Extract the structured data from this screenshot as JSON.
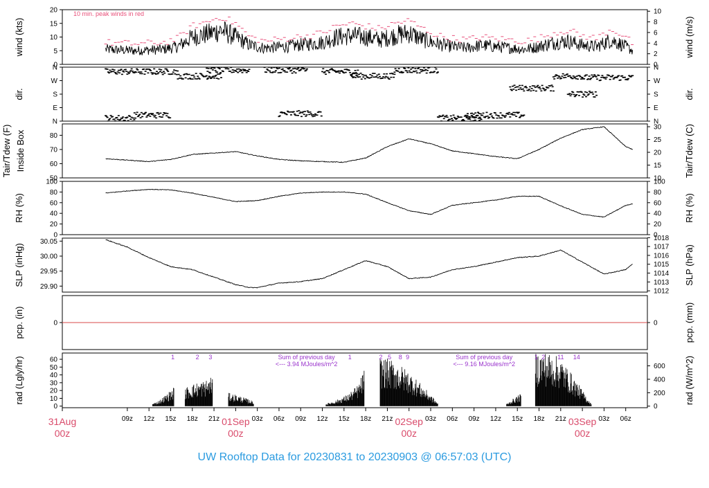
{
  "figure": {
    "footer_title": "UW Rooftop Data for 20230831  to  20230903 @ 06:57:03  (UTC)",
    "colors": {
      "title": "#2b9be0",
      "day_label": "#d94a6a",
      "wind_peak": "#e8507a",
      "pcp_line": "#d94a4a",
      "annotation": "#9932cc",
      "trace": "#000000"
    }
  },
  "time_axis": {
    "hours_span": 81,
    "ticks": [
      {
        "h": 3,
        "label": "09z"
      },
      {
        "h": 6,
        "label": "12z"
      },
      {
        "h": 9,
        "label": "15z"
      },
      {
        "h": 12,
        "label": "18z"
      },
      {
        "h": 15,
        "label": "21z"
      },
      {
        "h": 21,
        "label": "03z"
      },
      {
        "h": 24,
        "label": "06z"
      },
      {
        "h": 27,
        "label": "09z"
      },
      {
        "h": 30,
        "label": "12z"
      },
      {
        "h": 33,
        "label": "15z"
      },
      {
        "h": 36,
        "label": "18z"
      },
      {
        "h": 39,
        "label": "21z"
      },
      {
        "h": 45,
        "label": "03z"
      },
      {
        "h": 48,
        "label": "06z"
      },
      {
        "h": 51,
        "label": "09z"
      },
      {
        "h": 54,
        "label": "12z"
      },
      {
        "h": 57,
        "label": "15z"
      },
      {
        "h": 60,
        "label": "18z"
      },
      {
        "h": 63,
        "label": "21z"
      },
      {
        "h": 69,
        "label": "03z"
      },
      {
        "h": 72,
        "label": "06z"
      }
    ],
    "day_labels": [
      {
        "h": -6,
        "date": "31Aug",
        "zulu": "00z"
      },
      {
        "h": 18,
        "date": "01Sep",
        "zulu": "00z"
      },
      {
        "h": 42,
        "date": "02Sep",
        "zulu": "00z"
      },
      {
        "h": 66,
        "date": "03Sep",
        "zulu": "00z"
      }
    ]
  },
  "chart_data": [
    {
      "type": "line",
      "id": "wind",
      "ylabel": "wind (kts)",
      "ylabel_right": "wind (m/s)",
      "ylim": [
        0,
        20
      ],
      "yticks": [
        0,
        5,
        10,
        15,
        20
      ],
      "right_ylim": [
        0,
        10.29
      ],
      "right_yticks": [
        0,
        2,
        4,
        6,
        8,
        10
      ],
      "annotation": "10 min. peak winds in red",
      "series": [
        {
          "hours": [
            0,
            4,
            8,
            10,
            12,
            14,
            16,
            18,
            20,
            22,
            25,
            28,
            30,
            32,
            34,
            36,
            38,
            40,
            42,
            44,
            46,
            48,
            50,
            52,
            54,
            56,
            58,
            60,
            62,
            64,
            66,
            68,
            70,
            72,
            73
          ],
          "values": [
            5.5,
            5.0,
            5.5,
            6.5,
            10.0,
            11.0,
            12.5,
            10.0,
            7.0,
            6.0,
            6.5,
            7.5,
            8.0,
            10.0,
            10.5,
            10.0,
            9.0,
            10.5,
            11.5,
            9.0,
            7.5,
            6.5,
            6.0,
            7.0,
            6.5,
            6.0,
            5.5,
            6.5,
            8.0,
            8.5,
            7.0,
            6.5,
            9.0,
            6.5,
            5.0
          ]
        },
        {
          "hours": [
            0,
            4,
            8,
            10,
            12,
            14,
            16,
            18,
            20,
            22,
            25,
            28,
            30,
            32,
            34,
            36,
            38,
            40,
            42,
            44,
            46,
            48,
            50,
            52,
            54,
            56,
            58,
            60,
            62,
            64,
            66,
            68,
            70,
            72,
            73
          ],
          "values": [
            8.0,
            7.5,
            8.0,
            9.5,
            14.0,
            15.5,
            17.5,
            15.0,
            10.0,
            8.5,
            9.5,
            10.5,
            11.5,
            14.0,
            15.0,
            14.0,
            13.0,
            15.0,
            16.0,
            13.0,
            10.5,
            9.5,
            9.0,
            10.0,
            9.5,
            9.0,
            8.5,
            9.5,
            11.5,
            12.5,
            10.5,
            9.5,
            13.0,
            10.0,
            7.5
          ]
        }
      ]
    },
    {
      "type": "scatter",
      "id": "dir",
      "ylabel": "dir.",
      "ylabel_right": "dir.",
      "ylim": [
        0,
        360
      ],
      "ytick_values": [
        0,
        90,
        180,
        270,
        360
      ],
      "ytick_labels": [
        "N",
        "E",
        "S",
        "W",
        "N"
      ],
      "clusters": [
        {
          "h0": 0,
          "h1": 10,
          "dir": 330
        },
        {
          "h0": 0,
          "h1": 4,
          "dir": 20
        },
        {
          "h0": 4,
          "h1": 9,
          "dir": 40
        },
        {
          "h0": 10,
          "h1": 16,
          "dir": 300
        },
        {
          "h0": 14,
          "h1": 20,
          "dir": 340
        },
        {
          "h0": 22,
          "h1": 28,
          "dir": 340
        },
        {
          "h0": 24,
          "h1": 30,
          "dir": 50
        },
        {
          "h0": 30,
          "h1": 35,
          "dir": 330
        },
        {
          "h0": 34,
          "h1": 40,
          "dir": 300
        },
        {
          "h0": 40,
          "h1": 46,
          "dir": 340
        },
        {
          "h0": 46,
          "h1": 52,
          "dir": 20
        },
        {
          "h0": 50,
          "h1": 58,
          "dir": 40
        },
        {
          "h0": 56,
          "h1": 62,
          "dir": 220
        },
        {
          "h0": 62,
          "h1": 66,
          "dir": 300
        },
        {
          "h0": 66,
          "h1": 73,
          "dir": 290
        },
        {
          "h0": 64,
          "h1": 68,
          "dir": 180
        }
      ]
    },
    {
      "type": "line",
      "id": "tair",
      "ylabel": "Tair/Tdew (F)",
      "ylabel2": "Inside Box",
      "ylabel_right": "Tair/Tdew (C)",
      "ylim": [
        50,
        88
      ],
      "yticks": [
        50,
        60,
        70,
        80
      ],
      "right_ylim": [
        10,
        31.1
      ],
      "right_yticks": [
        10,
        15,
        20,
        25,
        30
      ],
      "series": [
        {
          "hours": [
            0,
            3,
            6,
            9,
            12,
            15,
            18,
            21,
            24,
            27,
            30,
            33,
            36,
            39,
            42,
            45,
            48,
            51,
            54,
            57,
            60,
            63,
            66,
            69,
            72,
            73
          ],
          "values": [
            63.5,
            62.5,
            61.5,
            63,
            66.5,
            67.5,
            68.5,
            65.5,
            63,
            62,
            61.5,
            61,
            64,
            72,
            77.5,
            74,
            69,
            67,
            65,
            63.5,
            70,
            78,
            84,
            86,
            72,
            70
          ]
        }
      ]
    },
    {
      "type": "line",
      "id": "rh",
      "ylabel": "RH (%)",
      "ylabel_right": "RH (%)",
      "ylim": [
        0,
        100
      ],
      "yticks": [
        0,
        20,
        40,
        60,
        80,
        100
      ],
      "right_yticks": [
        0,
        20,
        40,
        60,
        80,
        100
      ],
      "series": [
        {
          "hours": [
            0,
            3,
            6,
            9,
            12,
            15,
            18,
            21,
            24,
            27,
            30,
            33,
            36,
            39,
            42,
            45,
            48,
            51,
            54,
            57,
            60,
            63,
            66,
            69,
            72,
            73
          ],
          "values": [
            78,
            82,
            85,
            84,
            78,
            70,
            62,
            64,
            72,
            78,
            80,
            80,
            76,
            60,
            45,
            38,
            55,
            60,
            65,
            72,
            72,
            54,
            38,
            33,
            55,
            58
          ]
        }
      ]
    },
    {
      "type": "line",
      "id": "slp",
      "ylabel": "SLP (inHg)",
      "ylabel_right": "SLP (hPa)",
      "ylim": [
        29.88,
        30.06
      ],
      "yticks": [
        29.9,
        29.95,
        30.0,
        30.05
      ],
      "ytick_labels": [
        "29.90",
        "29.95",
        "30.00",
        "30.05"
      ],
      "right_yticks_hpa": [
        1012,
        1013,
        1014,
        1015,
        1016,
        1017,
        1018
      ],
      "series": [
        {
          "hours": [
            0,
            3,
            6,
            9,
            12,
            15,
            18,
            20,
            21,
            24,
            27,
            30,
            33,
            36,
            39,
            42,
            45,
            48,
            51,
            54,
            57,
            60,
            63,
            66,
            69,
            72,
            73
          ],
          "values": [
            30.055,
            30.03,
            29.995,
            29.965,
            29.955,
            29.93,
            29.905,
            29.895,
            29.895,
            29.91,
            29.915,
            29.925,
            29.955,
            29.985,
            29.965,
            29.925,
            29.93,
            29.955,
            29.965,
            29.98,
            29.995,
            30.0,
            30.02,
            29.98,
            29.94,
            29.955,
            29.975
          ]
        }
      ]
    },
    {
      "type": "line",
      "id": "pcp",
      "ylabel": "pcp. (in)",
      "ylabel_right": "pcp. (mm)",
      "ylim": [
        -1,
        1
      ],
      "yticks": [
        0
      ],
      "right_yticks": [
        0
      ],
      "series": [
        {
          "hours": [
            0,
            73
          ],
          "values": [
            0,
            0
          ]
        }
      ]
    },
    {
      "type": "bar",
      "id": "rad",
      "ylabel": "rad (Lgly/hr)",
      "ylabel_right": "rad (W/m^2)",
      "ylim": [
        -2,
        68
      ],
      "yticks": [
        0,
        10,
        20,
        30,
        40,
        50,
        60
      ],
      "right_yticks": [
        0,
        200,
        400,
        600
      ],
      "annotations": [
        {
          "h": 27.8,
          "lines": [
            "Sum of previous day",
            "<--- 3.94 MJoules/m^2"
          ]
        },
        {
          "h": 52.4,
          "lines": [
            "Sum of previous day",
            "<--- 9.16 MJoules/m^2"
          ]
        }
      ],
      "hour_markers": [
        {
          "h": 9.3,
          "label": "1"
        },
        {
          "h": 12.7,
          "label": "2"
        },
        {
          "h": 14.5,
          "label": "3"
        },
        {
          "h": 33.8,
          "label": "1"
        },
        {
          "h": 38.1,
          "label": "2"
        },
        {
          "h": 39.3,
          "label": "5"
        },
        {
          "h": 40.8,
          "label": "8"
        },
        {
          "h": 41.8,
          "label": "9"
        },
        {
          "h": 59.6,
          "label": "1"
        },
        {
          "h": 60.6,
          "label": "2"
        },
        {
          "h": 63.0,
          "label": "11"
        },
        {
          "h": 65.2,
          "label": "14"
        }
      ],
      "envelope": [
        {
          "hours": [
            6.5,
            7.5,
            8.5,
            9.5
          ],
          "values": [
            3,
            8,
            16,
            25
          ]
        },
        {
          "hours": [
            11,
            12.5,
            14,
            14.8
          ],
          "values": [
            24,
            30,
            34,
            40
          ]
        },
        {
          "hours": [
            17,
            18,
            19.5,
            20.5
          ],
          "values": [
            17,
            15,
            10,
            6
          ]
        },
        {
          "hours": [
            30.5,
            32,
            33.5,
            35,
            35.8
          ],
          "values": [
            3,
            8,
            15,
            28,
            48
          ]
        },
        {
          "hours": [
            38,
            40,
            42,
            44,
            46
          ],
          "values": [
            64,
            58,
            45,
            25,
            4
          ]
        },
        {
          "hours": [
            55.5,
            56.5,
            57.5
          ],
          "values": [
            3,
            10,
            16
          ]
        },
        {
          "hours": [
            59.5,
            61,
            63,
            65,
            67.3
          ],
          "values": [
            70,
            70,
            62,
            35,
            2
          ]
        }
      ]
    }
  ]
}
